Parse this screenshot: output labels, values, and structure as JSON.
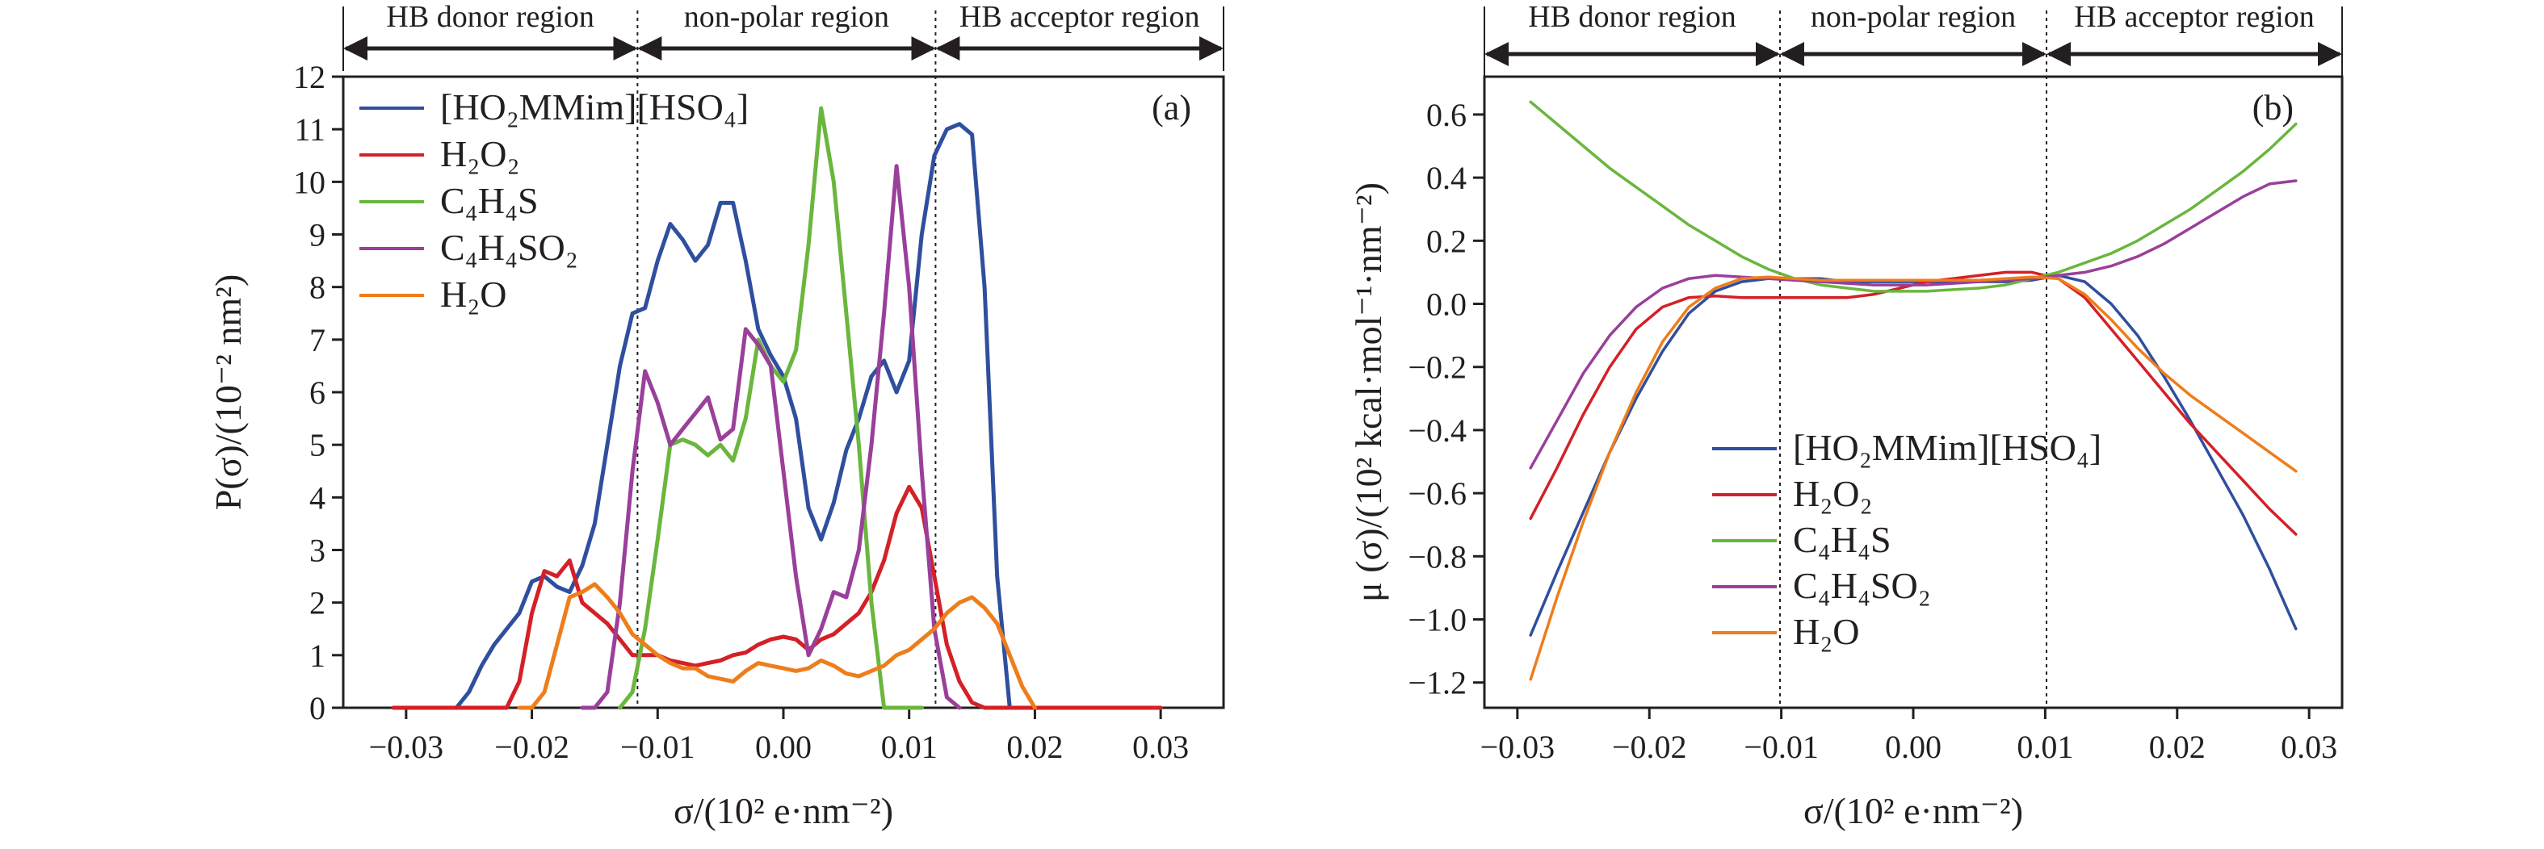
{
  "chart_data": [
    {
      "type": "line",
      "panel_label": "(a)",
      "xlabel": "σ/(10² e·nm⁻²)",
      "ylabel": "P(σ)/(10⁻² nm²)",
      "xlim": [
        -0.035,
        0.035
      ],
      "ylim": [
        0,
        12
      ],
      "xticks": [
        -0.03,
        -0.02,
        -0.01,
        0.0,
        0.01,
        0.02,
        0.03
      ],
      "xtick_labels": [
        "−0.03",
        "−0.02",
        "−0.01",
        "0.00",
        "0.01",
        "0.02",
        "0.03"
      ],
      "yticks": [
        0,
        1,
        2,
        3,
        4,
        5,
        6,
        7,
        8,
        9,
        10,
        11,
        12
      ],
      "ytick_labels": [
        "0",
        "1",
        "2",
        "3",
        "4",
        "5",
        "6",
        "7",
        "8",
        "9",
        "10",
        "11",
        "12"
      ],
      "grid": false,
      "legend_position": "top-left",
      "regions": [
        {
          "label": "HB donor region",
          "from": -0.035,
          "to": -0.0116
        },
        {
          "label": "non-polar region",
          "from": -0.0116,
          "to": 0.0121
        },
        {
          "label": "HB acceptor region",
          "from": 0.0121,
          "to": 0.035
        }
      ],
      "dividers": [
        -0.0116,
        0.0121
      ],
      "series": [
        {
          "name": "[HO₂MMim][HSO₄]",
          "color": "#2f4f9e",
          "x": [
            -0.031,
            -0.026,
            -0.025,
            -0.024,
            -0.023,
            -0.022,
            -0.021,
            -0.02,
            -0.019,
            -0.018,
            -0.017,
            -0.016,
            -0.015,
            -0.014,
            -0.013,
            -0.012,
            -0.011,
            -0.01,
            -0.009,
            -0.008,
            -0.007,
            -0.006,
            -0.005,
            -0.004,
            -0.003,
            -0.002,
            -0.001,
            0.0,
            0.001,
            0.002,
            0.003,
            0.004,
            0.005,
            0.006,
            0.007,
            0.008,
            0.009,
            0.01,
            0.011,
            0.012,
            0.013,
            0.014,
            0.015,
            0.016,
            0.017,
            0.018,
            0.019,
            0.02
          ],
          "y": [
            0,
            0,
            0.3,
            0.8,
            1.2,
            1.5,
            1.8,
            2.4,
            2.5,
            2.3,
            2.2,
            2.7,
            3.5,
            5.0,
            6.5,
            7.5,
            7.6,
            8.5,
            9.2,
            8.9,
            8.5,
            8.8,
            9.6,
            9.6,
            8.5,
            7.2,
            6.7,
            6.3,
            5.5,
            3.8,
            3.2,
            3.9,
            4.9,
            5.5,
            6.3,
            6.6,
            6.0,
            6.6,
            9.0,
            10.5,
            11.0,
            11.1,
            10.9,
            8.0,
            2.5,
            0,
            0,
            0
          ]
        },
        {
          "name": "H₂O₂",
          "color": "#d42027",
          "x": [
            -0.031,
            -0.022,
            -0.021,
            -0.02,
            -0.019,
            -0.018,
            -0.017,
            -0.016,
            -0.015,
            -0.014,
            -0.013,
            -0.012,
            -0.011,
            -0.01,
            -0.009,
            -0.008,
            -0.007,
            -0.006,
            -0.005,
            -0.004,
            -0.003,
            -0.002,
            -0.001,
            0.0,
            0.001,
            0.002,
            0.003,
            0.004,
            0.005,
            0.006,
            0.007,
            0.008,
            0.009,
            0.01,
            0.011,
            0.012,
            0.013,
            0.014,
            0.015,
            0.016,
            0.017,
            0.018,
            0.019,
            0.02,
            0.025,
            0.03
          ],
          "y": [
            0,
            0,
            0.5,
            1.8,
            2.6,
            2.5,
            2.8,
            2.0,
            1.8,
            1.6,
            1.3,
            1.0,
            1.0,
            1.0,
            0.9,
            0.85,
            0.8,
            0.85,
            0.9,
            1.0,
            1.05,
            1.2,
            1.3,
            1.35,
            1.3,
            1.1,
            1.3,
            1.4,
            1.6,
            1.8,
            2.2,
            2.8,
            3.7,
            4.2,
            3.8,
            2.5,
            1.2,
            0.5,
            0.1,
            0,
            0,
            0,
            0,
            0,
            0,
            0
          ]
        },
        {
          "name": "C₄H₄S",
          "color": "#6ab63e",
          "x": [
            -0.013,
            -0.012,
            -0.011,
            -0.01,
            -0.009,
            -0.008,
            -0.007,
            -0.006,
            -0.005,
            -0.004,
            -0.003,
            -0.002,
            -0.001,
            0.0,
            0.001,
            0.002,
            0.003,
            0.004,
            0.005,
            0.006,
            0.007,
            0.008,
            0.009,
            0.01,
            0.011
          ],
          "y": [
            0,
            0.3,
            1.5,
            3.2,
            5.0,
            5.1,
            5.0,
            4.8,
            5.0,
            4.7,
            5.5,
            7.0,
            6.5,
            6.2,
            6.8,
            8.8,
            11.4,
            10.0,
            7.5,
            5.0,
            2.0,
            0,
            0,
            0,
            0
          ]
        },
        {
          "name": "C₄H₄SO₂",
          "color": "#9a3f9a",
          "x": [
            -0.016,
            -0.015,
            -0.014,
            -0.013,
            -0.012,
            -0.011,
            -0.01,
            -0.009,
            -0.008,
            -0.007,
            -0.006,
            -0.005,
            -0.004,
            -0.003,
            -0.002,
            -0.001,
            0.0,
            0.001,
            0.002,
            0.003,
            0.004,
            0.005,
            0.006,
            0.007,
            0.008,
            0.009,
            0.01,
            0.011,
            0.012,
            0.013,
            0.014
          ],
          "y": [
            0,
            0,
            0.3,
            2.0,
            4.5,
            6.4,
            5.8,
            5.0,
            5.3,
            5.6,
            5.9,
            5.1,
            5.3,
            7.2,
            6.9,
            6.5,
            4.5,
            2.5,
            1.0,
            1.5,
            2.2,
            2.1,
            3.0,
            5.0,
            7.5,
            10.3,
            8.0,
            4.5,
            1.5,
            0.2,
            0
          ]
        },
        {
          "name": "H₂O",
          "color": "#ee7d1b",
          "x": [
            -0.021,
            -0.02,
            -0.019,
            -0.018,
            -0.017,
            -0.016,
            -0.015,
            -0.014,
            -0.013,
            -0.012,
            -0.011,
            -0.01,
            -0.009,
            -0.008,
            -0.007,
            -0.006,
            -0.005,
            -0.004,
            -0.003,
            -0.002,
            -0.001,
            0.0,
            0.001,
            0.002,
            0.003,
            0.004,
            0.005,
            0.006,
            0.007,
            0.008,
            0.009,
            0.01,
            0.011,
            0.012,
            0.013,
            0.014,
            0.015,
            0.016,
            0.017,
            0.018,
            0.019,
            0.02
          ],
          "y": [
            0,
            0,
            0.3,
            1.2,
            2.1,
            2.2,
            2.35,
            2.1,
            1.8,
            1.4,
            1.2,
            1.0,
            0.85,
            0.75,
            0.75,
            0.6,
            0.55,
            0.5,
            0.7,
            0.85,
            0.8,
            0.75,
            0.7,
            0.75,
            0.9,
            0.8,
            0.65,
            0.6,
            0.7,
            0.8,
            1.0,
            1.1,
            1.3,
            1.5,
            1.8,
            2.0,
            2.1,
            1.9,
            1.6,
            1.0,
            0.4,
            0
          ]
        }
      ]
    },
    {
      "type": "line",
      "panel_label": "(b)",
      "xlabel": "σ/(10² e·nm⁻²)",
      "ylabel": "μ (σ)/(10² kcal·mol⁻¹·nm⁻²)",
      "xlim": [
        -0.0325,
        0.0325
      ],
      "ylim": [
        -1.28,
        0.72
      ],
      "xticks": [
        -0.03,
        -0.02,
        -0.01,
        0.0,
        0.01,
        0.02,
        0.03
      ],
      "xtick_labels": [
        "−0.03",
        "−0.02",
        "−0.01",
        "0.00",
        "0.01",
        "0.02",
        "0.03"
      ],
      "yticks": [
        -1.2,
        -1.0,
        -0.8,
        -0.6,
        -0.4,
        -0.2,
        0.0,
        0.2,
        0.4,
        0.6
      ],
      "ytick_labels": [
        "−1.2",
        "−1.0",
        "−0.8",
        "−0.6",
        "−0.4",
        "−0.2",
        "0.0",
        "0.2",
        "0.4",
        "0.6"
      ],
      "grid": false,
      "legend_position": "bottom-center",
      "regions": [
        {
          "label": "HB donor region",
          "from": -0.0325,
          "to": -0.0101
        },
        {
          "label": "non-polar region",
          "from": -0.0101,
          "to": 0.0101
        },
        {
          "label": "HB acceptor region",
          "from": 0.0101,
          "to": 0.0325
        }
      ],
      "dividers": [
        -0.0101,
        0.0101
      ],
      "series": [
        {
          "name": "[HO₂MMim][HSO₄]",
          "color": "#2f4f9e",
          "x": [
            -0.029,
            -0.027,
            -0.025,
            -0.023,
            -0.021,
            -0.019,
            -0.017,
            -0.015,
            -0.013,
            -0.011,
            -0.009,
            -0.007,
            -0.005,
            -0.003,
            -0.001,
            0.001,
            0.003,
            0.005,
            0.007,
            0.009,
            0.011,
            0.013,
            0.015,
            0.017,
            0.019,
            0.021,
            0.023,
            0.025,
            0.027,
            0.029
          ],
          "y": [
            -1.05,
            -0.85,
            -0.66,
            -0.47,
            -0.3,
            -0.15,
            -0.03,
            0.04,
            0.07,
            0.08,
            0.08,
            0.08,
            0.07,
            0.07,
            0.07,
            0.07,
            0.07,
            0.07,
            0.07,
            0.075,
            0.09,
            0.07,
            0.0,
            -0.1,
            -0.23,
            -0.37,
            -0.52,
            -0.67,
            -0.84,
            -1.03
          ]
        },
        {
          "name": "H₂O₂",
          "color": "#d42027",
          "x": [
            -0.029,
            -0.027,
            -0.025,
            -0.023,
            -0.021,
            -0.019,
            -0.017,
            -0.015,
            -0.013,
            -0.011,
            -0.009,
            -0.007,
            -0.005,
            -0.003,
            -0.001,
            0.001,
            0.003,
            0.005,
            0.007,
            0.009,
            0.011,
            0.013,
            0.015,
            0.017,
            0.019,
            0.021,
            0.023,
            0.025,
            0.027,
            0.029
          ],
          "y": [
            -0.68,
            -0.52,
            -0.35,
            -0.2,
            -0.08,
            -0.01,
            0.02,
            0.025,
            0.02,
            0.02,
            0.02,
            0.02,
            0.02,
            0.03,
            0.05,
            0.07,
            0.08,
            0.09,
            0.1,
            0.1,
            0.08,
            0.02,
            -0.08,
            -0.18,
            -0.28,
            -0.38,
            -0.47,
            -0.56,
            -0.65,
            -0.73
          ]
        },
        {
          "name": "C₄H₄S",
          "color": "#6ab63e",
          "x": [
            -0.029,
            -0.027,
            -0.025,
            -0.023,
            -0.021,
            -0.019,
            -0.017,
            -0.015,
            -0.013,
            -0.011,
            -0.009,
            -0.007,
            -0.005,
            -0.003,
            -0.001,
            0.001,
            0.003,
            0.005,
            0.007,
            0.009,
            0.011,
            0.013,
            0.015,
            0.017,
            0.019,
            0.021,
            0.023,
            0.025,
            0.027,
            0.029
          ],
          "y": [
            0.64,
            0.57,
            0.5,
            0.43,
            0.37,
            0.31,
            0.25,
            0.2,
            0.15,
            0.11,
            0.08,
            0.06,
            0.05,
            0.04,
            0.04,
            0.04,
            0.045,
            0.05,
            0.06,
            0.08,
            0.1,
            0.13,
            0.16,
            0.2,
            0.25,
            0.3,
            0.36,
            0.42,
            0.49,
            0.57
          ]
        },
        {
          "name": "C₄H₄SO₂",
          "color": "#9a3f9a",
          "x": [
            -0.029,
            -0.027,
            -0.025,
            -0.023,
            -0.021,
            -0.019,
            -0.017,
            -0.015,
            -0.013,
            -0.011,
            -0.009,
            -0.007,
            -0.005,
            -0.003,
            -0.001,
            0.001,
            0.003,
            0.005,
            0.007,
            0.009,
            0.011,
            0.013,
            0.015,
            0.017,
            0.019,
            0.021,
            0.023,
            0.025,
            0.027,
            0.029
          ],
          "y": [
            -0.52,
            -0.37,
            -0.22,
            -0.1,
            -0.01,
            0.05,
            0.08,
            0.09,
            0.085,
            0.08,
            0.075,
            0.07,
            0.065,
            0.06,
            0.06,
            0.06,
            0.065,
            0.07,
            0.075,
            0.08,
            0.09,
            0.1,
            0.12,
            0.15,
            0.19,
            0.24,
            0.29,
            0.34,
            0.38,
            0.39
          ]
        },
        {
          "name": "H₂O",
          "color": "#ee7d1b",
          "x": [
            -0.029,
            -0.027,
            -0.025,
            -0.023,
            -0.021,
            -0.019,
            -0.017,
            -0.015,
            -0.013,
            -0.011,
            -0.009,
            -0.007,
            -0.005,
            -0.003,
            -0.001,
            0.001,
            0.003,
            0.005,
            0.007,
            0.009,
            0.011,
            0.013,
            0.015,
            0.017,
            0.019,
            0.021,
            0.023,
            0.025,
            0.027,
            0.029
          ],
          "y": [
            -1.19,
            -0.93,
            -0.69,
            -0.47,
            -0.28,
            -0.12,
            -0.01,
            0.05,
            0.08,
            0.085,
            0.08,
            0.075,
            0.075,
            0.075,
            0.075,
            0.075,
            0.075,
            0.075,
            0.08,
            0.085,
            0.08,
            0.03,
            -0.05,
            -0.14,
            -0.22,
            -0.29,
            -0.35,
            -0.41,
            -0.47,
            -0.53
          ]
        }
      ]
    }
  ]
}
